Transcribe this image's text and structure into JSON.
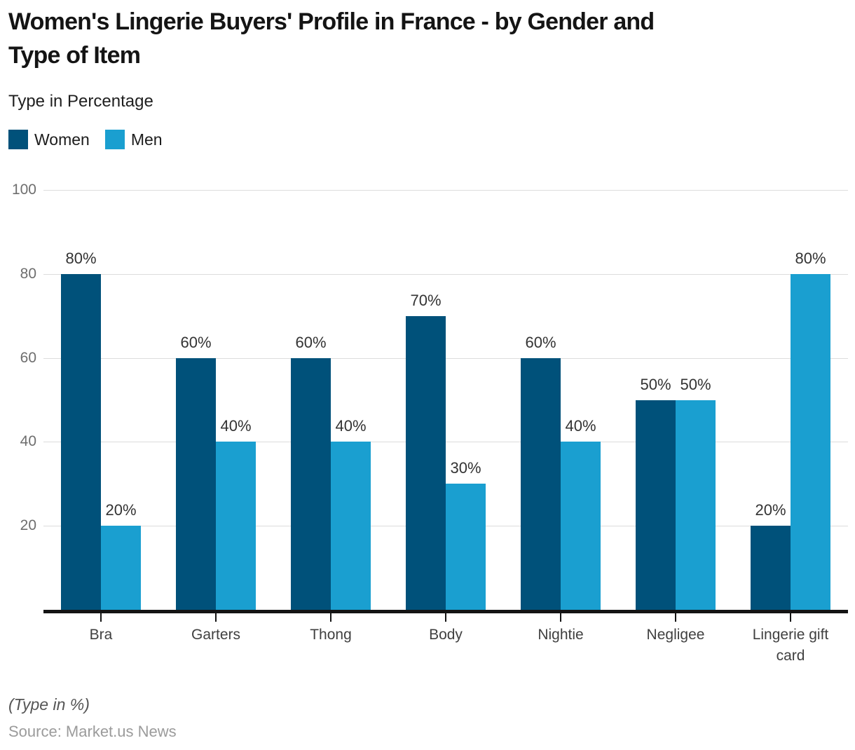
{
  "header": {
    "title": "Women's Lingerie Buyers' Profile in France - by Gender and Type of Item",
    "title_line1": "Women's Lingerie Buyers' Profile in France - by Gender and",
    "title_line2": "Type of Item",
    "subtitle": "Type in Percentage"
  },
  "chart_data": {
    "type": "bar",
    "title": "Women's Lingerie Buyers' Profile in France - by Gender and Type of Item",
    "subtitle": "Type in Percentage",
    "categories": [
      "Bra",
      "Garters",
      "Thong",
      "Body",
      "Nightie",
      "Negligee",
      "Lingerie gift card"
    ],
    "series": [
      {
        "name": "Women",
        "color": "#00517a",
        "values": [
          80,
          60,
          60,
          70,
          60,
          50,
          20
        ]
      },
      {
        "name": "Men",
        "color": "#1a9fd0",
        "values": [
          20,
          40,
          40,
          30,
          40,
          50,
          80
        ]
      }
    ],
    "value_suffix": "%",
    "data_labels": [
      "80%",
      "20%",
      "60%",
      "40%",
      "60%",
      "40%",
      "70%",
      "30%",
      "60%",
      "40%",
      "50%",
      "50%",
      "20%",
      "80%"
    ],
    "y_ticks": [
      "100",
      "80",
      "60",
      "40",
      "20"
    ],
    "ylim": [
      0,
      100
    ],
    "grid": true,
    "legend_position": "top-left",
    "xlabel": "",
    "ylabel": ""
  },
  "footer": {
    "note": "(Type in %)",
    "source": "Source: Market.us News"
  },
  "colors": {
    "women": "#00517a",
    "men": "#1a9fd0",
    "gridline": "#dcdcdc",
    "baseline": "#141414",
    "value_text": "#333333",
    "axis_text": "#6e6e6e",
    "category_text": "#404040"
  }
}
